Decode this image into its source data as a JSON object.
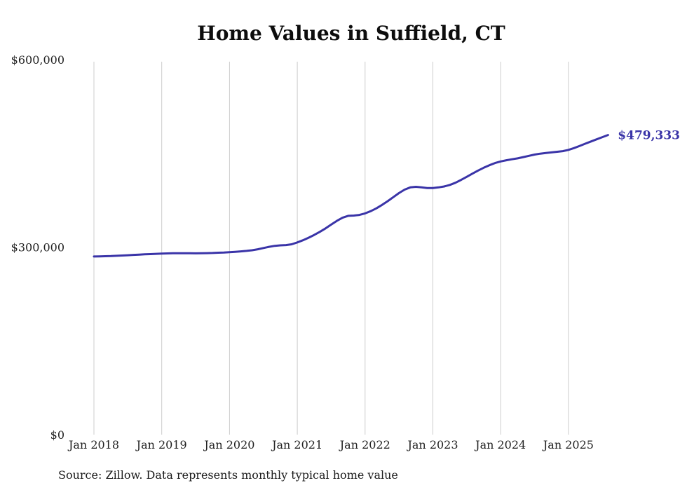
{
  "page": {
    "background": "#ffffff"
  },
  "chart_data": {
    "type": "line",
    "title": "Home Values in Suffield, CT",
    "source_note": "Source: Zillow. Data represents monthly typical home value",
    "end_label": "$479,333",
    "line_color": "#3a34a8",
    "grid_color": "#cccccc",
    "legend": "none",
    "grid": "vertical-only",
    "ylim": [
      0,
      600000
    ],
    "y_ticks": [
      {
        "value": 0,
        "label": "$0"
      },
      {
        "value": 300000,
        "label": "$300,000"
      },
      {
        "value": 600000,
        "label": "$600,000"
      }
    ],
    "x_ticks": [
      "Jan 2018",
      "Jan 2019",
      "Jan 2020",
      "Jan 2021",
      "Jan 2022",
      "Jan 2023",
      "Jan 2024",
      "Jan 2025"
    ],
    "x_start_month": "2018-01",
    "x_interval": "monthly",
    "series": [
      {
        "name": "Typical home value",
        "values": [
          285000,
          285200,
          285400,
          285700,
          286100,
          286500,
          287000,
          287500,
          288000,
          288400,
          288800,
          289200,
          289600,
          289900,
          290100,
          290200,
          290200,
          290100,
          290000,
          290100,
          290300,
          290600,
          291000,
          291400,
          291900,
          292500,
          293200,
          294000,
          295000,
          296500,
          298500,
          300500,
          302000,
          302800,
          303200,
          304500,
          307500,
          311000,
          315000,
          319500,
          324500,
          330000,
          336000,
          342000,
          347000,
          350000,
          350500,
          351500,
          354000,
          357500,
          362000,
          367500,
          373500,
          380000,
          386500,
          392000,
          395500,
          396500,
          395500,
          394500,
          394500,
          395500,
          397000,
          399500,
          403000,
          407500,
          412500,
          417500,
          422500,
          427000,
          431000,
          434500,
          437000,
          439000,
          440500,
          442000,
          444000,
          446000,
          448000,
          449500,
          450500,
          451500,
          452500,
          453500,
          455500,
          458500,
          462000,
          465500,
          469000,
          472500,
          476000,
          479333
        ]
      }
    ],
    "final_value": 479333
  }
}
